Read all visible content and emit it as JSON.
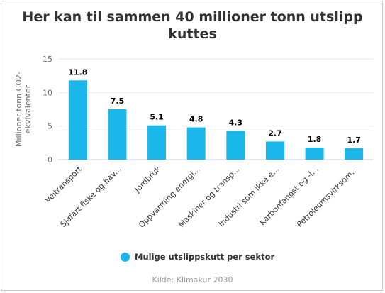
{
  "colors": {
    "bar": "#19b7ea",
    "grid": "#e6e6e6",
    "axis_text": "#666666",
    "label_text": "#000000"
  },
  "chart_data": {
    "type": "bar",
    "title_lines": [
      "Her kan til sammen 40 millioner tonn utslipp",
      "kuttes"
    ],
    "ylabel_lines": [
      "Millioner tonn CO2-",
      "ekvivalenter"
    ],
    "xlabel": "",
    "ylim": [
      0,
      15
    ],
    "yticks": [
      0,
      5,
      10,
      15
    ],
    "grid": true,
    "legend_position": "bottom-center",
    "categories": [
      "Veitransport",
      "Sjøfart fiske og hav...",
      "Jordbruk",
      "Oppvarming energi...",
      "Maskiner og transp...",
      "Industri som ikke e...",
      "Karbonfangst og -l...",
      "Petroleumsvirksom..."
    ],
    "series": [
      {
        "name": "Mulige utslippskutt per sektor",
        "values": [
          11.8,
          7.5,
          5.1,
          4.8,
          4.3,
          2.7,
          1.8,
          1.7
        ]
      }
    ],
    "data_labels": [
      "11.8",
      "7.5",
      "5.1",
      "4.8",
      "4.3",
      "2.7",
      "1.8",
      "1.7"
    ],
    "credits": "Kilde: Klimakur 2030"
  }
}
